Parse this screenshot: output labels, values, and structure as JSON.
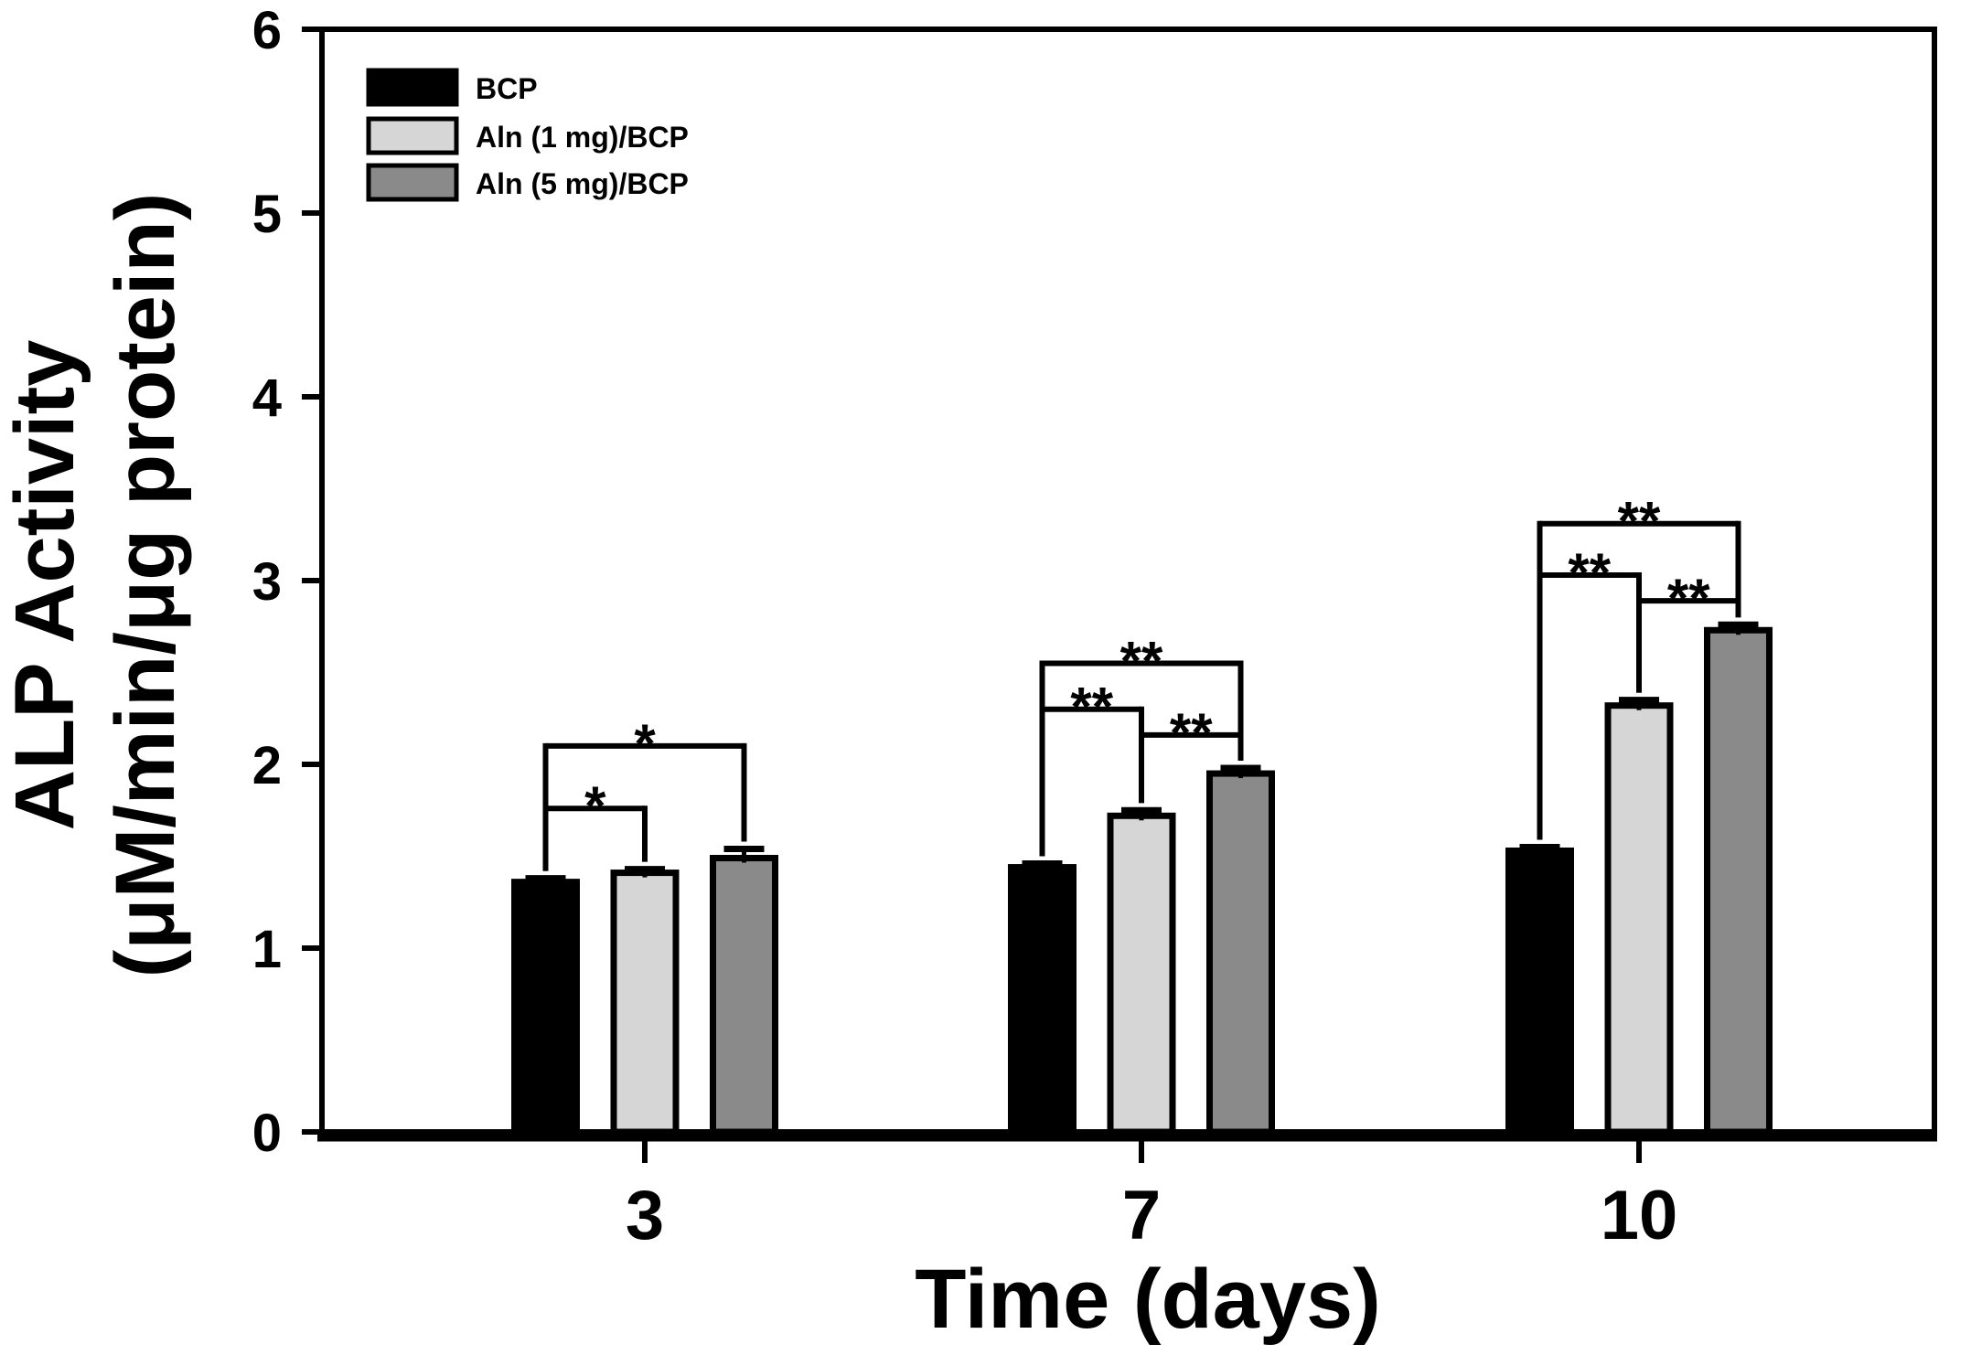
{
  "chart_data": {
    "type": "bar",
    "title": "",
    "xlabel": "Time (days)",
    "ylabel_lines": [
      "ALP Activity",
      "(μM/min/μg protein)"
    ],
    "categories": [
      "3",
      "7",
      "10"
    ],
    "series": [
      {
        "name": "BCP",
        "color": "#000000",
        "values": [
          1.36,
          1.44,
          1.53
        ],
        "errors": [
          0.02,
          0.02,
          0.02
        ]
      },
      {
        "name": "Aln (1 mg)/BCP",
        "color": "#d6d6d6",
        "values": [
          1.41,
          1.72,
          2.32
        ],
        "errors": [
          0.02,
          0.03,
          0.03
        ]
      },
      {
        "name": "Aln (5 mg)/BCP",
        "color": "#8a8a8a",
        "values": [
          1.49,
          1.95,
          2.73
        ],
        "errors": [
          0.05,
          0.03,
          0.03
        ]
      }
    ],
    "ylim": [
      0,
      6
    ],
    "yticks": [
      "0",
      "1",
      "2",
      "3",
      "4",
      "5",
      "6"
    ],
    "grid": false,
    "legend_position": "top-left",
    "significance": [
      {
        "group": 0,
        "from": 0,
        "to": 1,
        "height": 1.76,
        "label": "*"
      },
      {
        "group": 0,
        "from": 0,
        "to": 2,
        "height": 2.1,
        "label": "*"
      },
      {
        "group": 1,
        "from": 0,
        "to": 1,
        "height": 2.3,
        "label": "**"
      },
      {
        "group": 1,
        "from": 1,
        "to": 2,
        "height": 2.16,
        "label": "**"
      },
      {
        "group": 1,
        "from": 0,
        "to": 2,
        "height": 2.55,
        "label": "**"
      },
      {
        "group": 2,
        "from": 0,
        "to": 1,
        "height": 3.03,
        "label": "**"
      },
      {
        "group": 2,
        "from": 1,
        "to": 2,
        "height": 2.89,
        "label": "**"
      },
      {
        "group": 2,
        "from": 0,
        "to": 2,
        "height": 3.31,
        "label": "**"
      }
    ]
  },
  "colors": {
    "axis": "#000000",
    "background": "#ffffff"
  }
}
